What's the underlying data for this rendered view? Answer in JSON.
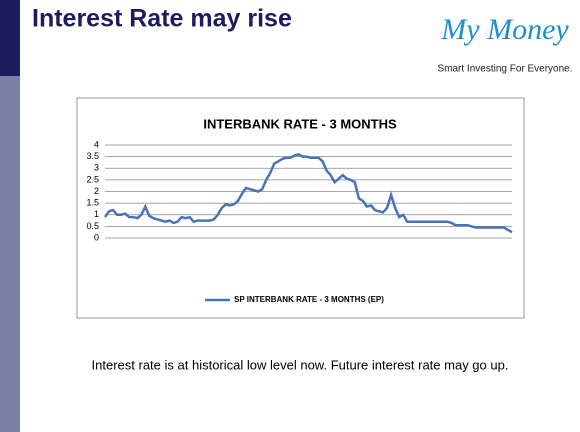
{
  "slide": {
    "title": "Interest Rate may rise",
    "logo": "My Money",
    "tagline": "Smart Investing For Everyone.",
    "caption": "Interest rate is at historical low level now. Future interest rate may go up."
  },
  "chart_data": {
    "type": "line",
    "title": "INTERBANK RATE - 3 MONTHS",
    "series": [
      {
        "name": "SP INTERBANK  RATE - 3 MONTHS (EP)",
        "color": "#4a72b8",
        "values": [
          0.9,
          1.15,
          1.2,
          1.0,
          1.0,
          1.05,
          0.9,
          0.9,
          0.85,
          1.0,
          1.35,
          0.95,
          0.85,
          0.8,
          0.75,
          0.7,
          0.75,
          0.65,
          0.7,
          0.9,
          0.85,
          0.9,
          0.7,
          0.75,
          0.75,
          0.75,
          0.75,
          0.8,
          1.0,
          1.3,
          1.45,
          1.4,
          1.45,
          1.6,
          1.9,
          2.15,
          2.1,
          2.05,
          2.0,
          2.1,
          2.5,
          2.8,
          3.2,
          3.3,
          3.4,
          3.45,
          3.45,
          3.55,
          3.6,
          3.5,
          3.5,
          3.45,
          3.45,
          3.45,
          3.3,
          2.9,
          2.7,
          2.4,
          2.55,
          2.7,
          2.55,
          2.5,
          2.4,
          1.7,
          1.6,
          1.35,
          1.4,
          1.2,
          1.15,
          1.1,
          1.3,
          1.85,
          1.3,
          0.9,
          1.0,
          0.7,
          0.7,
          0.7,
          0.7,
          0.7,
          0.7,
          0.7,
          0.7,
          0.7,
          0.7,
          0.7,
          0.65,
          0.55,
          0.55,
          0.55,
          0.55,
          0.5,
          0.45,
          0.45,
          0.45,
          0.45,
          0.45,
          0.45,
          0.45,
          0.45,
          0.35,
          0.25
        ]
      }
    ],
    "ylim": [
      0,
      4
    ],
    "yticks": [
      0,
      0.5,
      1,
      1.5,
      2,
      2.5,
      3,
      3.5,
      4
    ],
    "grid": true,
    "legend": "bottom"
  }
}
